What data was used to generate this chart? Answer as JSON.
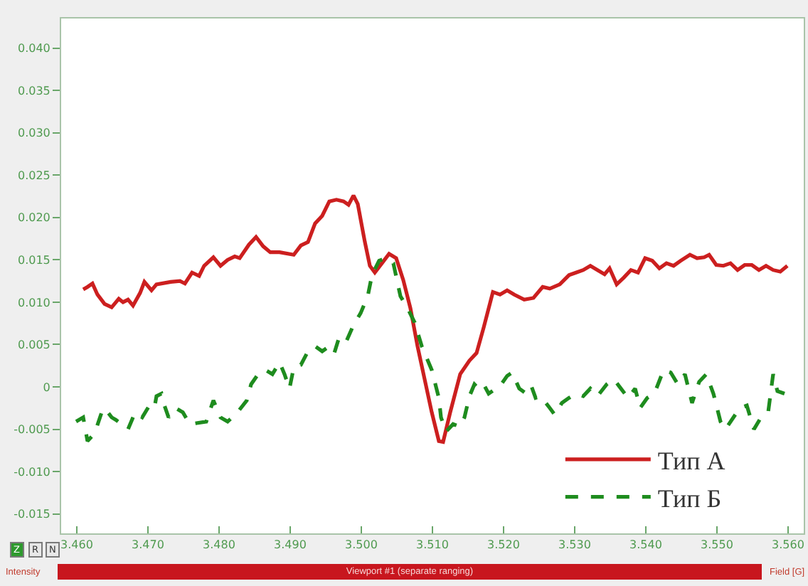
{
  "chart_data": {
    "type": "line",
    "xlabel": "Field [G]",
    "ylabel": "Intensity",
    "annotations": [
      "Viewport #1 (separate ranging)",
      "Z",
      "R",
      "N"
    ],
    "xlim": [
      3.4578,
      3.5622
    ],
    "xticks": [
      {
        "value": 3.46,
        "label": "3.460"
      },
      {
        "value": 3.47,
        "label": "3.470"
      },
      {
        "value": 3.48,
        "label": "3.480"
      },
      {
        "value": 3.49,
        "label": "3.490"
      },
      {
        "value": 3.5,
        "label": "3.500"
      },
      {
        "value": 3.51,
        "label": "3.510"
      },
      {
        "value": 3.52,
        "label": "3.520"
      },
      {
        "value": 3.53,
        "label": "3.530"
      },
      {
        "value": 3.54,
        "label": "3.540"
      },
      {
        "value": 3.55,
        "label": "3.550"
      },
      {
        "value": 3.56,
        "label": "3.560"
      }
    ],
    "ylim": [
      -0.0173,
      0.0435
    ],
    "yticks": [
      {
        "value": -0.015,
        "label": "-0.015"
      },
      {
        "value": -0.01,
        "label": "-0.010"
      },
      {
        "value": -0.005,
        "label": "-0.005"
      },
      0,
      {
        "value": 0.005,
        "label": "0.005"
      },
      {
        "value": 0.01,
        "label": "0.010"
      },
      {
        "value": 0.015,
        "label": "0.015"
      },
      {
        "value": 0.02,
        "label": "0.020"
      },
      {
        "value": 0.025,
        "label": "0.025"
      },
      {
        "value": 0.03,
        "label": "0.030"
      },
      {
        "value": 0.035,
        "label": "0.035"
      },
      {
        "value": 0.04,
        "label": "0.040"
      }
    ],
    "legend": "bottom right",
    "series": [
      {
        "name": "Тип А",
        "color": "#cc1f1f",
        "line_style": "solid",
        "x": [
          3.4609,
          3.4615,
          3.4622,
          3.4629,
          3.4639,
          3.4649,
          3.4659,
          3.4665,
          3.4672,
          3.4679,
          3.4689,
          3.4695,
          3.4705,
          3.4712,
          3.4732,
          3.4745,
          3.4752,
          3.4762,
          3.4772,
          3.4779,
          3.4792,
          3.4802,
          3.4812,
          3.4822,
          3.4829,
          3.4842,
          3.4852,
          3.4862,
          3.4872,
          3.4885,
          3.4905,
          3.4915,
          3.4925,
          3.4935,
          3.4945,
          3.4955,
          3.4965,
          3.4975,
          3.4982,
          3.4989,
          3.4995,
          3.5005,
          3.5012,
          3.5019,
          3.5029,
          3.5039,
          3.5049,
          3.5059,
          3.5069,
          3.5079,
          3.5089,
          3.5099,
          3.5109,
          3.5115,
          3.5125,
          3.5139,
          3.5152,
          3.5162,
          3.5172,
          3.5185,
          3.5195,
          3.5205,
          3.5215,
          3.5229,
          3.5242,
          3.5255,
          3.5265,
          3.5279,
          3.5292,
          3.5302,
          3.5312,
          3.5322,
          3.5332,
          3.5342,
          3.5349,
          3.5359,
          3.5369,
          3.5379,
          3.5389,
          3.5399,
          3.5409,
          3.5419,
          3.5429,
          3.5439,
          3.5449,
          3.5462,
          3.5472,
          3.5482,
          3.5489,
          3.5499,
          3.5509,
          3.5519,
          3.5529,
          3.5539,
          3.5549,
          3.5559,
          3.5569,
          3.5579,
          3.5589,
          3.5599
        ],
        "values": [
          0.0115,
          0.0118,
          0.0122,
          0.0109,
          0.0098,
          0.0094,
          0.0104,
          0.01,
          0.0103,
          0.0096,
          0.0111,
          0.0124,
          0.0114,
          0.0121,
          0.0124,
          0.0125,
          0.0122,
          0.0135,
          0.0131,
          0.0143,
          0.0153,
          0.0143,
          0.015,
          0.0154,
          0.0152,
          0.0168,
          0.0177,
          0.0166,
          0.0159,
          0.0159,
          0.0156,
          0.0167,
          0.0171,
          0.0193,
          0.0202,
          0.0219,
          0.0221,
          0.0219,
          0.0215,
          0.0226,
          0.0216,
          0.0171,
          0.0143,
          0.0135,
          0.0146,
          0.0157,
          0.0152,
          0.0126,
          0.0093,
          0.0048,
          0.0009,
          -0.003,
          -0.0064,
          -0.0065,
          -0.003,
          0.0015,
          0.0031,
          0.004,
          0.007,
          0.0112,
          0.0109,
          0.0114,
          0.0109,
          0.0103,
          0.0105,
          0.0118,
          0.0116,
          0.0121,
          0.0132,
          0.0135,
          0.0138,
          0.0143,
          0.0138,
          0.0133,
          0.014,
          0.0121,
          0.0129,
          0.0138,
          0.0135,
          0.0152,
          0.0149,
          0.014,
          0.0146,
          0.0143,
          0.0149,
          0.0156,
          0.0152,
          0.0153,
          0.0156,
          0.0144,
          0.0143,
          0.0146,
          0.0138,
          0.0144,
          0.0144,
          0.0138,
          0.0143,
          0.0138,
          0.0136,
          0.0143
        ]
      },
      {
        "name": "Тип Б",
        "color": "#1e8c1e",
        "line_style": "dashed",
        "x": [
          3.4599,
          3.4609,
          3.4615,
          3.4625,
          3.4635,
          3.4639,
          3.4649,
          3.4655,
          3.4672,
          3.4682,
          3.4692,
          3.4702,
          3.4709,
          3.4712,
          3.4719,
          3.4722,
          3.4729,
          3.4739,
          3.4749,
          3.4759,
          3.4782,
          3.4792,
          3.4802,
          3.4812,
          3.4825,
          3.4839,
          3.4845,
          3.4855,
          3.4865,
          3.4875,
          3.4885,
          3.4892,
          3.4899,
          3.4905,
          3.4915,
          3.4925,
          3.4935,
          3.4945,
          3.4955,
          3.4962,
          3.4969,
          3.4979,
          3.4989,
          3.4999,
          3.5009,
          3.5015,
          3.5025,
          3.5035,
          3.5045,
          3.5055,
          3.5065,
          3.5075,
          3.5085,
          3.5099,
          3.5109,
          3.5112,
          3.5119,
          3.5129,
          3.5139,
          3.5145,
          3.5152,
          3.5159,
          3.5165,
          3.5172,
          3.5179,
          3.5189,
          3.5195,
          3.5205,
          3.5212,
          3.5222,
          3.5232,
          3.5239,
          3.5245,
          3.5252,
          3.5265,
          3.5272,
          3.5282,
          3.5292,
          3.5302,
          3.5312,
          3.5322,
          3.5332,
          3.5345,
          3.5355,
          3.5365,
          3.5375,
          3.5385,
          3.5392,
          3.5402,
          3.5412,
          3.5425,
          3.5435,
          3.5445,
          3.5455,
          3.5465,
          3.5475,
          3.5485,
          3.5495,
          3.5505,
          3.5512,
          3.5532,
          3.5542,
          3.5552,
          3.5562,
          3.5572,
          3.5579,
          3.5585,
          3.5595
        ],
        "values": [
          -0.0041,
          -0.0036,
          -0.0064,
          -0.0055,
          -0.003,
          -0.0025,
          -0.0036,
          -0.0039,
          -0.005,
          -0.003,
          -0.0036,
          -0.0022,
          -0.0025,
          -0.0011,
          -0.0008,
          -0.0019,
          -0.0036,
          -0.0025,
          -0.003,
          -0.0044,
          -0.0041,
          -0.0016,
          -0.0036,
          -0.0041,
          -0.0031,
          -0.0016,
          0.0003,
          0.0015,
          0.002,
          0.0015,
          0.0029,
          0.0015,
          -0.0002,
          0.0023,
          0.0026,
          0.0042,
          0.0048,
          0.0042,
          0.0048,
          0.004,
          0.0059,
          0.0054,
          0.0073,
          0.0087,
          0.0107,
          0.0132,
          0.0149,
          0.0152,
          0.0146,
          0.0107,
          0.0093,
          0.0076,
          0.0048,
          0.002,
          -0.0013,
          -0.0036,
          -0.0053,
          -0.0044,
          -0.0047,
          -0.0036,
          -0.0011,
          0.0003,
          -0.0002,
          0.0003,
          -0.0008,
          -0.0002,
          0.0001,
          0.0013,
          0.0017,
          -0.0002,
          -0.0008,
          0.0001,
          -0.0013,
          -0.0011,
          -0.0025,
          -0.0033,
          -0.0019,
          -0.0013,
          -0.0008,
          -0.0011,
          -0.0002,
          -0.0011,
          0.0003,
          0.0009,
          -0.0002,
          -0.0013,
          -0.0002,
          -0.0025,
          -0.0013,
          -0.0008,
          0.002,
          0.0017,
          0.0003,
          0.0015,
          -0.0019,
          0.0006,
          0.0015,
          -0.0008,
          -0.0041,
          -0.005,
          -0.0025,
          -0.0022,
          -0.005,
          -0.0036,
          -0.003,
          0.0015,
          -0.0005,
          -0.0008
        ]
      }
    ]
  }
}
